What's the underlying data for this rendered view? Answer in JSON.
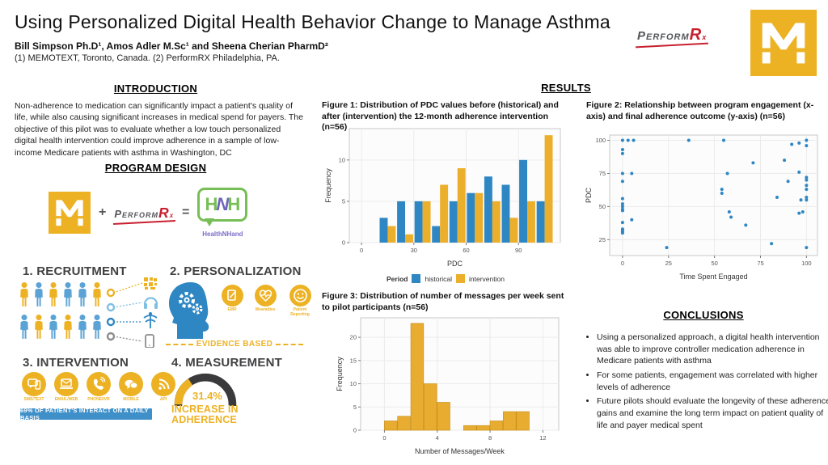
{
  "colors": {
    "yellow": "#EDB224",
    "chart_blue": "#2E87C3",
    "chart_yellow": "#EBAF2B",
    "hist_orange": "#E8AC30",
    "banner_blue": "#3F8FC9",
    "person_blue": "#5BA3D4",
    "dark": "#3A3A3C",
    "red": "#C8202F",
    "green": "#77BE56",
    "purple": "#6F63BE",
    "light_blue": "#7FBFE3",
    "gray": "#8C8C8C"
  },
  "header": {
    "title": "Using Personalized Digital Health Behavior Change to Manage Asthma",
    "authors": "Bill Simpson Ph.D¹, Amos Adler M.Sc¹ and Sheena Cherian PharmD²",
    "affiliations": "(1) MEMOTEXT, Toronto, Canada. (2) PerformRX Philadelphia, PA."
  },
  "logos": {
    "performrx": "Perform",
    "performrx_r": "R",
    "performrx_x": "x",
    "healthnhand_h1": "H",
    "healthnhand_n": "N",
    "healthnhand_h2": "H",
    "healthnhand_caption": "HealthNHand",
    "plus": "+",
    "equals": "="
  },
  "sections": {
    "introduction": {
      "heading": "INTRODUCTION",
      "body": "Non-adherence to medication can significantly impact a patient's quality of life, while also causing significant increases in medical spend for payers.  The objective of this pilot was to evaluate whether a low touch personalized digital health intervention could improve adherence in a sample of low-income Medicare patients with asthma in Washington, DC"
    },
    "program_design": {
      "heading": "PROGRAM DESIGN"
    },
    "results": {
      "heading": "RESULTS"
    },
    "conclusions": {
      "heading": "CONCLUSIONS",
      "bullets": [
        "Using a personalized approach, a digital health intervention was able to improve controller medication adherence in Medicare patients with asthma",
        "For some patients, engagement was correlated with higher levels of adherence",
        "Future pilots should evaluate the longevity of these adherence gains and examine the long term impact on patient quality of life and payer medical spent"
      ]
    }
  },
  "program": {
    "recruitment": {
      "label": "1. RECRUITMENT",
      "rows": [
        [
          "yellow",
          "blue",
          "yellow",
          "blue",
          "blue",
          "yellow"
        ],
        [
          "blue",
          "yellow",
          "blue",
          "yellow",
          "blue",
          "blue"
        ]
      ]
    },
    "personalization": {
      "label": "2. PERSONALIZATION",
      "circles": [
        "EMR",
        "Wearables",
        "Patient Reporting"
      ],
      "evidence": "EVIDENCE BASED"
    },
    "intervention": {
      "label": "3. INTERVENTION",
      "channels": [
        "SMS/TEXT",
        "EMAIL/WEB",
        "PHONE/IVR",
        "MOBILE",
        "API"
      ],
      "banner": "69% OF PATIENT'S INTERACT ON A DAILY BASIS"
    },
    "measurement": {
      "label": "4. MEASUREMENT",
      "value": "31.4%",
      "caption_line1": "INCREASE IN",
      "caption_line2": "ADHERENCE"
    }
  },
  "figures": {
    "fig1_caption": "Figure 1: Distribution of PDC values before (historical) and after (intervention) the 12-month adherence intervention (n=56)",
    "fig2_caption": "Figure 2: Relationship between program engagement (x-axis) and final adherence outcome (y-axis) (n=56)",
    "fig3_caption": "Figure 3: Distribution of number of messages per week sent to pilot participants (n=56)",
    "fig1_legend_title": "Period",
    "fig1_legend_historical": "historical",
    "fig1_legend_intervention": "intervention"
  },
  "chart_data": [
    {
      "type": "bar",
      "subtype": "grouped_histogram",
      "title": "Distribution of PDC values before and after intervention",
      "xlabel": "PDC",
      "ylabel": "Frequency",
      "xlim": [
        -7,
        114
      ],
      "ylim": [
        0,
        13.8
      ],
      "xticks": [
        0,
        30,
        60,
        90
      ],
      "yticks": [
        0,
        5,
        10
      ],
      "pair_centers": [
        15,
        25,
        35,
        45,
        55,
        65,
        75,
        85,
        95,
        105
      ],
      "bar_half_width": 4.6,
      "legend_title": "Period",
      "legend_position": "bottom",
      "grid": true,
      "series": [
        {
          "name": "historical",
          "values": [
            3,
            5,
            5,
            2,
            5,
            6,
            8,
            7,
            10,
            5
          ]
        },
        {
          "name": "intervention",
          "values": [
            2,
            1,
            5,
            7,
            9,
            6,
            5,
            3,
            5,
            13
          ]
        }
      ]
    },
    {
      "type": "scatter",
      "title": "Program engagement vs final adherence outcome",
      "xlabel": "Time Spent Engaged",
      "ylabel": "PDC",
      "xlim": [
        -7,
        106
      ],
      "ylim": [
        13,
        104
      ],
      "xticks": [
        0,
        25,
        50,
        75,
        100
      ],
      "yticks": [
        25,
        50,
        75,
        100
      ],
      "grid": true,
      "points": [
        [
          0,
          100
        ],
        [
          3,
          100
        ],
        [
          6,
          100
        ],
        [
          0,
          93
        ],
        [
          0,
          90
        ],
        [
          0,
          75
        ],
        [
          5,
          75
        ],
        [
          0,
          69
        ],
        [
          0,
          56
        ],
        [
          0,
          52
        ],
        [
          0,
          50
        ],
        [
          0,
          48
        ],
        [
          0,
          47
        ],
        [
          5,
          40
        ],
        [
          0,
          38
        ],
        [
          0,
          33
        ],
        [
          0,
          32
        ],
        [
          0,
          31
        ],
        [
          0,
          30
        ],
        [
          24,
          19
        ],
        [
          36,
          100
        ],
        [
          54,
          63
        ],
        [
          54,
          60
        ],
        [
          55,
          100
        ],
        [
          57,
          75
        ],
        [
          58,
          46
        ],
        [
          59,
          42
        ],
        [
          67,
          36
        ],
        [
          71,
          83
        ],
        [
          81,
          22
        ],
        [
          84,
          57
        ],
        [
          88,
          85
        ],
        [
          90,
          69
        ],
        [
          92,
          97
        ],
        [
          96,
          98
        ],
        [
          96,
          76
        ],
        [
          96,
          45
        ],
        [
          97,
          55
        ],
        [
          98,
          46
        ],
        [
          100,
          100
        ],
        [
          100,
          96
        ],
        [
          100,
          72
        ],
        [
          100,
          70
        ],
        [
          100,
          66
        ],
        [
          100,
          63
        ],
        [
          100,
          57
        ],
        [
          100,
          55
        ],
        [
          100,
          19
        ]
      ]
    },
    {
      "type": "bar",
      "subtype": "histogram",
      "title": "Distribution of number of messages per week",
      "xlabel": "Number of Messages/Week",
      "ylabel": "Frequency",
      "xlim": [
        -1.8,
        13.2
      ],
      "ylim": [
        0,
        24.2
      ],
      "xticks": [
        0,
        4,
        8,
        12
      ],
      "yticks": [
        0,
        5,
        10,
        15,
        20
      ],
      "bin_start": 0,
      "bin_width": 1,
      "grid": true,
      "values": [
        2,
        3,
        23,
        10,
        6,
        0,
        1,
        1,
        2,
        4,
        4
      ]
    }
  ]
}
